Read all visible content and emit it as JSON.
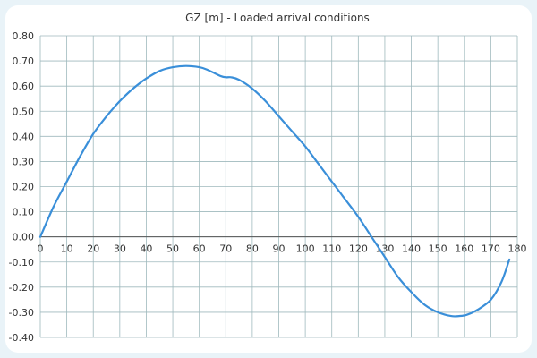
{
  "chart_data": {
    "type": "line",
    "title": "GZ [m] - Loaded arrival conditions",
    "xlabel": "",
    "ylabel": "",
    "xlim": [
      0,
      180
    ],
    "ylim": [
      -0.4,
      0.8
    ],
    "x_ticks": [
      0,
      10,
      20,
      30,
      40,
      50,
      60,
      70,
      80,
      90,
      100,
      110,
      120,
      130,
      140,
      150,
      160,
      170,
      180
    ],
    "x_tick_labels": [
      "0",
      "10",
      "20",
      "30",
      "40",
      "50",
      "60",
      "70",
      "80",
      "90",
      "100",
      "110",
      "120",
      "130",
      "140",
      "150",
      "160",
      "170",
      "180"
    ],
    "y_ticks": [
      0.8,
      0.7,
      0.6,
      0.5,
      0.4,
      0.3,
      0.2,
      0.1,
      0.0,
      -0.1,
      -0.2,
      -0.3,
      -0.4
    ],
    "y_tick_labels": [
      "0.80",
      "0.70",
      "0.60",
      "0.50",
      "0.40",
      "0.30",
      "0.20",
      "0.10",
      "0.00",
      "-0.10",
      "-0.20",
      "-0.30",
      "-0.40"
    ],
    "grid": true,
    "series": [
      {
        "color": "#3a8fd9",
        "x": [
          0,
          5,
          10,
          15,
          20,
          25,
          30,
          35,
          40,
          45,
          50,
          55,
          60,
          63,
          66,
          68,
          70,
          72,
          75,
          80,
          85,
          90,
          95,
          100,
          105,
          110,
          115,
          120,
          125,
          130,
          135,
          140,
          145,
          150,
          155,
          158,
          161,
          165,
          170,
          174,
          177
        ],
        "y": [
          0.0,
          0.12,
          0.22,
          0.32,
          0.41,
          0.48,
          0.54,
          0.59,
          0.63,
          0.66,
          0.675,
          0.68,
          0.675,
          0.665,
          0.65,
          0.64,
          0.635,
          0.635,
          0.625,
          0.59,
          0.54,
          0.48,
          0.42,
          0.36,
          0.29,
          0.22,
          0.15,
          0.08,
          0.0,
          -0.08,
          -0.16,
          -0.22,
          -0.27,
          -0.3,
          -0.315,
          -0.315,
          -0.31,
          -0.29,
          -0.25,
          -0.18,
          -0.09
        ]
      }
    ]
  }
}
